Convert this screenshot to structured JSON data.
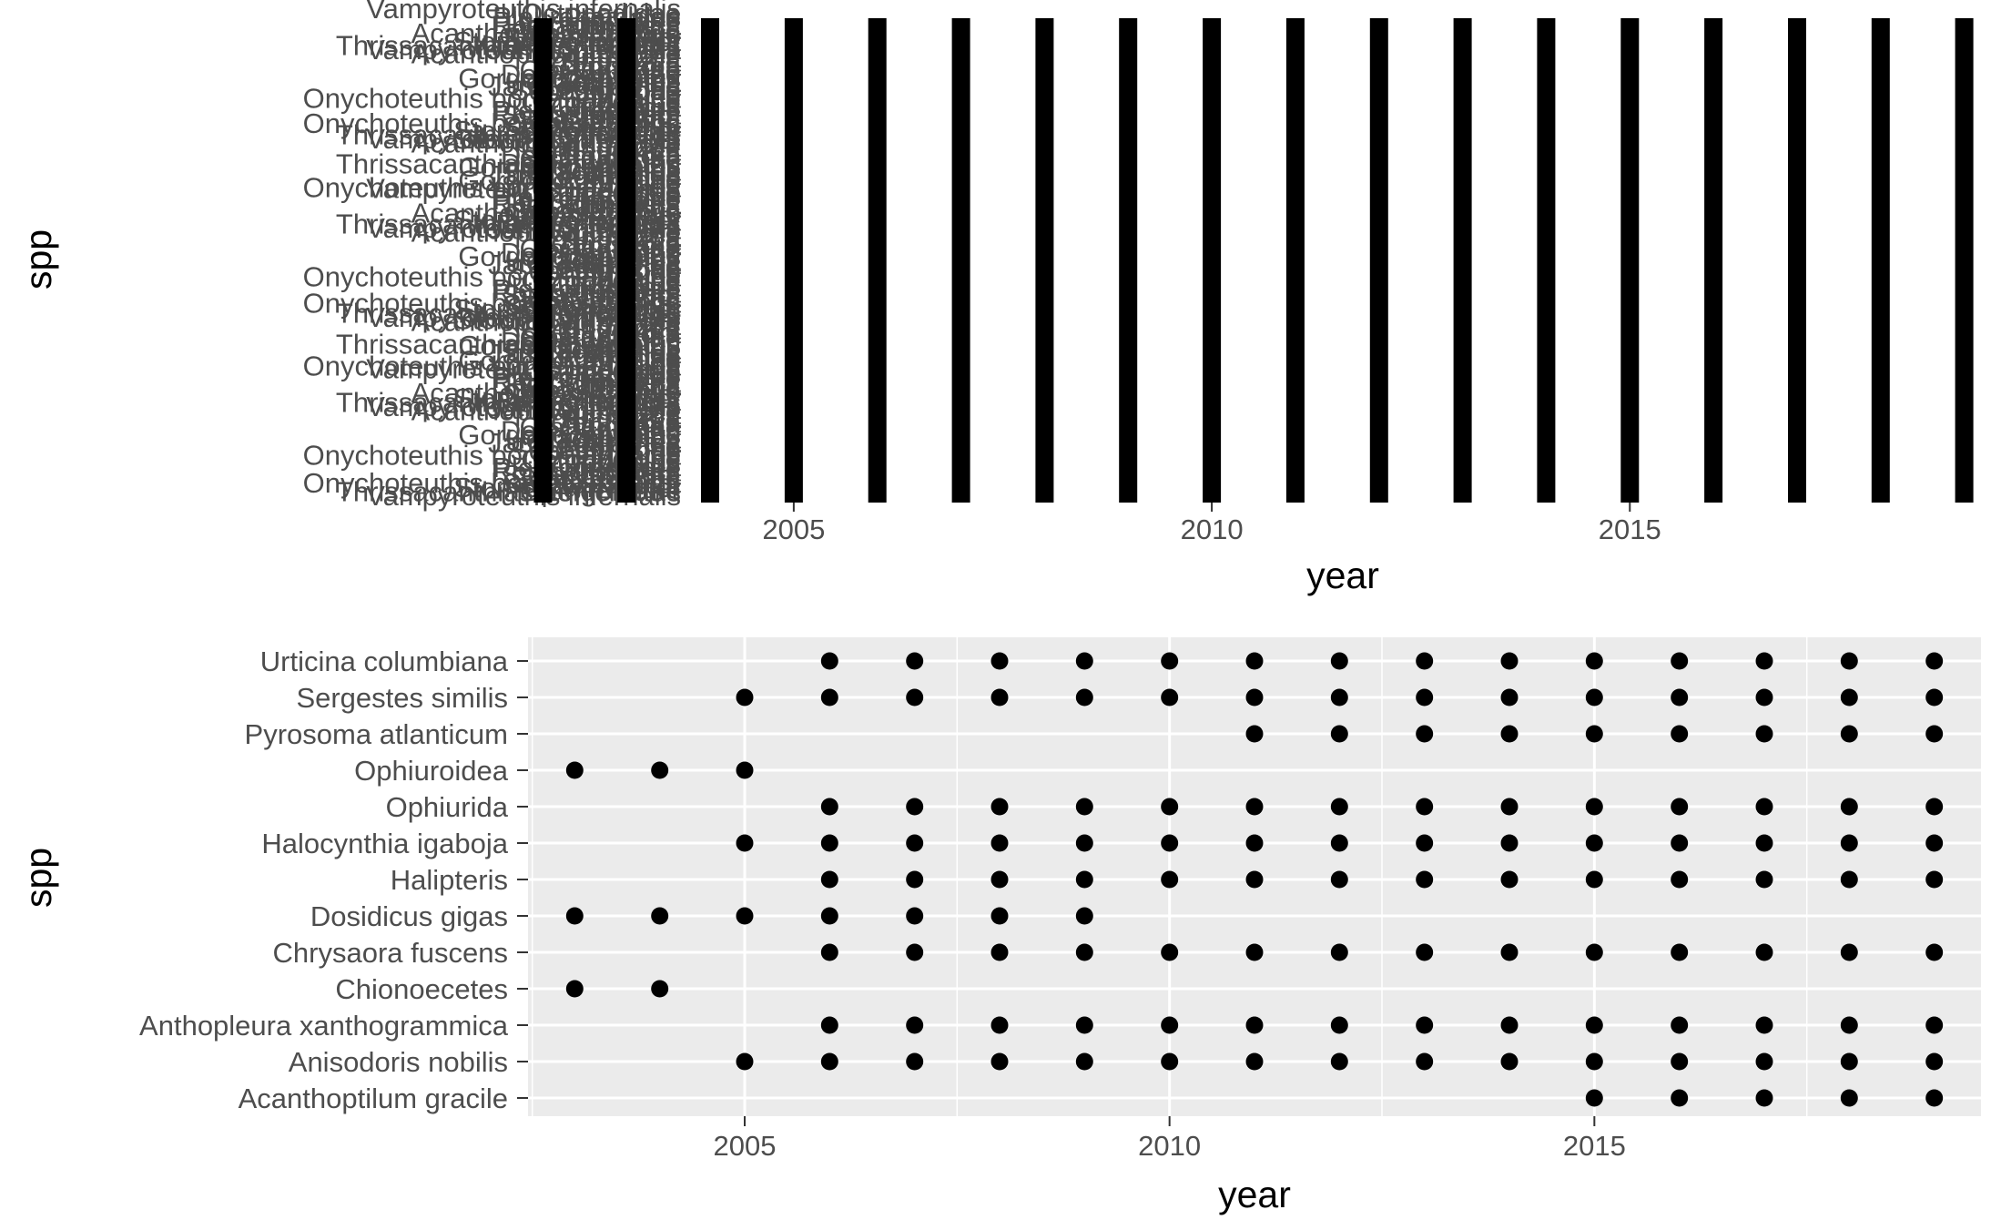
{
  "chart_data": [
    {
      "type": "scatter",
      "xlabel": "year",
      "ylabel": "spp",
      "x_ticks": [
        2005,
        2010,
        2015
      ],
      "xlim": [
        2001.8,
        2019.2
      ],
      "grid": false,
      "years": [
        2002,
        2003,
        2004,
        2005,
        2006,
        2007,
        2008,
        2009,
        2010,
        2011,
        2012,
        2013,
        2014,
        2015,
        2016,
        2017,
        2018,
        2019
      ],
      "overplotted_labels": [
        "Vampyroteuthis infernalis",
        "Thrissacanthias penicillatus",
        "Stomias atriventer",
        "Sebastes spp.",
        "Sebastolobus",
        "Scyphozoa",
        "Rhinochimaera",
        "Pleuronectidae",
        "Pandalus",
        "Octopodidae",
        "Onychoteuthis borealijaponica",
        "Myxine",
        "Lophiidae",
        "Janetogalathea",
        "Hexactinellida",
        "Gorgonocephalus",
        "Delectopecten",
        "Crangonidae",
        "Chrysaora",
        "Bathyraja",
        "Anthozoa",
        "Acanthoptilum gracile"
      ]
    },
    {
      "type": "scatter",
      "xlabel": "year",
      "ylabel": "spp",
      "x_ticks": [
        2005,
        2010,
        2015
      ],
      "xlim": [
        2002.45,
        2019.55
      ],
      "grid": true,
      "categories": [
        "Urticina columbiana",
        "Sergestes similis",
        "Pyrosoma atlanticum",
        "Ophiuroidea",
        "Ophiurida",
        "Halocynthia igaboja",
        "Halipteris",
        "Dosidicus gigas",
        "Chrysaora fuscens",
        "Chionoecetes",
        "Anthopleura xanthogrammica",
        "Anisodoris nobilis",
        "Acanthoptilum gracile"
      ],
      "points": [
        {
          "spp": "Urticina columbiana",
          "years": [
            2006,
            2007,
            2008,
            2009,
            2010,
            2011,
            2012,
            2013,
            2014,
            2015,
            2016,
            2017,
            2018,
            2019
          ]
        },
        {
          "spp": "Sergestes similis",
          "years": [
            2005,
            2006,
            2007,
            2008,
            2009,
            2010,
            2011,
            2012,
            2013,
            2014,
            2015,
            2016,
            2017,
            2018,
            2019
          ]
        },
        {
          "spp": "Pyrosoma atlanticum",
          "years": [
            2011,
            2012,
            2013,
            2014,
            2015,
            2016,
            2017,
            2018,
            2019
          ]
        },
        {
          "spp": "Ophiuroidea",
          "years": [
            2003,
            2004,
            2005
          ]
        },
        {
          "spp": "Ophiurida",
          "years": [
            2006,
            2007,
            2008,
            2009,
            2010,
            2011,
            2012,
            2013,
            2014,
            2015,
            2016,
            2017,
            2018,
            2019
          ]
        },
        {
          "spp": "Halocynthia igaboja",
          "years": [
            2005,
            2006,
            2007,
            2008,
            2009,
            2010,
            2011,
            2012,
            2013,
            2014,
            2015,
            2016,
            2017,
            2018,
            2019
          ]
        },
        {
          "spp": "Halipteris",
          "years": [
            2006,
            2007,
            2008,
            2009,
            2010,
            2011,
            2012,
            2013,
            2014,
            2015,
            2016,
            2017,
            2018,
            2019
          ]
        },
        {
          "spp": "Dosidicus gigas",
          "years": [
            2003,
            2004,
            2005,
            2006,
            2007,
            2008,
            2009
          ]
        },
        {
          "spp": "Chrysaora fuscens",
          "years": [
            2006,
            2007,
            2008,
            2009,
            2010,
            2011,
            2012,
            2013,
            2014,
            2015,
            2016,
            2017,
            2018,
            2019
          ]
        },
        {
          "spp": "Chionoecetes",
          "years": [
            2003,
            2004
          ]
        },
        {
          "spp": "Anthopleura xanthogrammica",
          "years": [
            2006,
            2007,
            2008,
            2009,
            2010,
            2011,
            2012,
            2013,
            2014,
            2015,
            2016,
            2017,
            2018,
            2019
          ]
        },
        {
          "spp": "Anisodoris nobilis",
          "years": [
            2005,
            2006,
            2007,
            2008,
            2009,
            2010,
            2011,
            2012,
            2013,
            2014,
            2015,
            2016,
            2017,
            2018,
            2019
          ]
        },
        {
          "spp": "Acanthoptilum gracile",
          "years": [
            2015,
            2016,
            2017,
            2018,
            2019
          ]
        }
      ]
    }
  ]
}
